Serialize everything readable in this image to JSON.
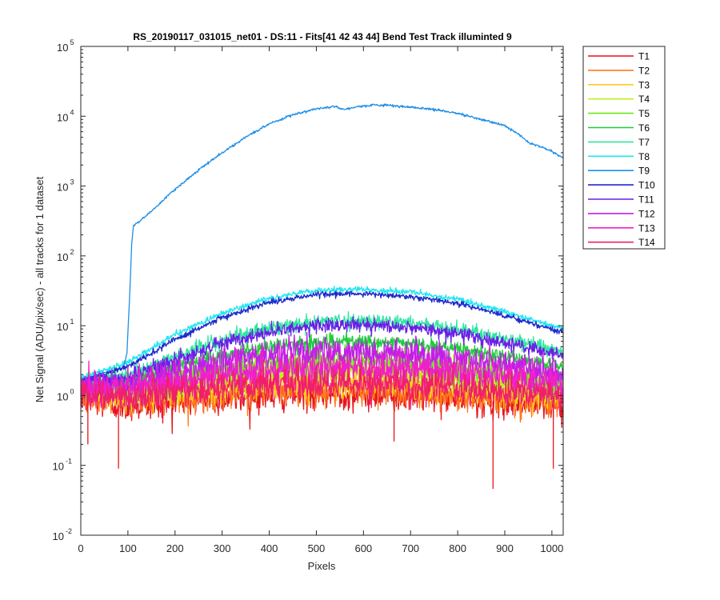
{
  "chart_data": {
    "type": "line",
    "title": "RS_20190117_031015_net01 - DS:11 - Fits[41  42  43  44]   Bend Test       Track illuminted 9",
    "xlabel": "Pixels",
    "ylabel": "Net Signal (ADU/pix/sec) - all tracks for 1 dataset",
    "xlim": [
      0,
      1024
    ],
    "ylim": [
      0.01,
      100000
    ],
    "yscale": "log",
    "grid": false,
    "legend_position": "outside-right",
    "x_ticks": [
      0,
      100,
      200,
      300,
      400,
      500,
      600,
      700,
      800,
      900,
      1000
    ],
    "y_ticks": [
      {
        "value": 0.01,
        "base": "10",
        "exp": "-2"
      },
      {
        "value": 0.1,
        "base": "10",
        "exp": "-1"
      },
      {
        "value": 1,
        "base": "10",
        "exp": "0"
      },
      {
        "value": 10,
        "base": "10",
        "exp": "1"
      },
      {
        "value": 100,
        "base": "10",
        "exp": "2"
      },
      {
        "value": 1000,
        "base": "10",
        "exp": "3"
      },
      {
        "value": 10000,
        "base": "10",
        "exp": "4"
      },
      {
        "value": 100000,
        "base": "10",
        "exp": "5"
      }
    ],
    "series": [
      {
        "name": "T1",
        "color": "#e8141c",
        "points": [
          [
            0,
            0.9
          ],
          [
            100,
            0.7
          ],
          [
            200,
            0.8
          ],
          [
            300,
            0.9
          ],
          [
            400,
            1.0
          ],
          [
            500,
            1.05
          ],
          [
            600,
            1.05
          ],
          [
            700,
            1.0
          ],
          [
            800,
            0.9
          ],
          [
            900,
            0.8
          ],
          [
            1000,
            0.7
          ],
          [
            1024,
            0.7
          ]
        ]
      },
      {
        "name": "T2",
        "color": "#ff7a1a",
        "points": [
          [
            0,
            1.0
          ],
          [
            100,
            0.85
          ],
          [
            200,
            0.95
          ],
          [
            300,
            1.05
          ],
          [
            400,
            1.15
          ],
          [
            500,
            1.2
          ],
          [
            600,
            1.2
          ],
          [
            700,
            1.15
          ],
          [
            800,
            1.05
          ],
          [
            900,
            0.95
          ],
          [
            1000,
            0.85
          ],
          [
            1024,
            0.8
          ]
        ]
      },
      {
        "name": "T3",
        "color": "#ffcc1f",
        "points": [
          [
            0,
            1.1
          ],
          [
            100,
            1.0
          ],
          [
            200,
            1.15
          ],
          [
            300,
            1.35
          ],
          [
            400,
            1.55
          ],
          [
            500,
            1.65
          ],
          [
            600,
            1.65
          ],
          [
            700,
            1.55
          ],
          [
            800,
            1.35
          ],
          [
            900,
            1.2
          ],
          [
            1000,
            1.05
          ],
          [
            1024,
            1.0
          ]
        ]
      },
      {
        "name": "T4",
        "color": "#c0f01c",
        "points": [
          [
            0,
            1.2
          ],
          [
            100,
            1.15
          ],
          [
            200,
            1.4
          ],
          [
            300,
            1.8
          ],
          [
            400,
            2.15
          ],
          [
            500,
            2.3
          ],
          [
            600,
            2.3
          ],
          [
            700,
            2.15
          ],
          [
            800,
            1.85
          ],
          [
            900,
            1.5
          ],
          [
            1000,
            1.25
          ],
          [
            1024,
            1.2
          ]
        ]
      },
      {
        "name": "T5",
        "color": "#6ee81c",
        "points": [
          [
            0,
            1.3
          ],
          [
            100,
            1.35
          ],
          [
            200,
            1.8
          ],
          [
            300,
            2.4
          ],
          [
            400,
            2.9
          ],
          [
            500,
            3.15
          ],
          [
            600,
            3.1
          ],
          [
            700,
            2.9
          ],
          [
            800,
            2.5
          ],
          [
            900,
            2.0
          ],
          [
            1000,
            1.6
          ],
          [
            1024,
            1.5
          ]
        ]
      },
      {
        "name": "T6",
        "color": "#1fcc3c",
        "points": [
          [
            0,
            1.4
          ],
          [
            100,
            1.6
          ],
          [
            200,
            2.5
          ],
          [
            300,
            3.8
          ],
          [
            400,
            5.0
          ],
          [
            500,
            5.8
          ],
          [
            600,
            5.9
          ],
          [
            700,
            5.5
          ],
          [
            800,
            4.6
          ],
          [
            900,
            3.6
          ],
          [
            1000,
            2.8
          ],
          [
            1024,
            2.6
          ]
        ]
      },
      {
        "name": "T7",
        "color": "#2ee6a0",
        "points": [
          [
            0,
            1.5
          ],
          [
            100,
            2.0
          ],
          [
            200,
            3.6
          ],
          [
            300,
            6.3
          ],
          [
            400,
            9.2
          ],
          [
            500,
            11.5
          ],
          [
            600,
            12.0
          ],
          [
            700,
            11.0
          ],
          [
            800,
            9.0
          ],
          [
            900,
            6.6
          ],
          [
            1000,
            4.6
          ],
          [
            1024,
            4.0
          ]
        ]
      },
      {
        "name": "T8",
        "color": "#22e6f0",
        "points": [
          [
            0,
            1.8
          ],
          [
            100,
            3.0
          ],
          [
            200,
            7.5
          ],
          [
            300,
            15
          ],
          [
            400,
            25
          ],
          [
            500,
            32
          ],
          [
            600,
            33
          ],
          [
            700,
            30
          ],
          [
            800,
            24
          ],
          [
            900,
            16
          ],
          [
            1000,
            10
          ],
          [
            1024,
            9
          ]
        ]
      },
      {
        "name": "T9",
        "color": "#1f8fe6",
        "points": [
          [
            0,
            1.7
          ],
          [
            90,
            2.5
          ],
          [
            98,
            4
          ],
          [
            104,
            30
          ],
          [
            108,
            150
          ],
          [
            112,
            270
          ],
          [
            140,
            380
          ],
          [
            200,
            900
          ],
          [
            250,
            1700
          ],
          [
            300,
            3000
          ],
          [
            350,
            5000
          ],
          [
            400,
            7800
          ],
          [
            450,
            10500
          ],
          [
            500,
            12800
          ],
          [
            540,
            14000
          ],
          [
            550,
            13000
          ],
          [
            560,
            12500
          ],
          [
            580,
            13500
          ],
          [
            620,
            14500
          ],
          [
            660,
            14200
          ],
          [
            700,
            13500
          ],
          [
            750,
            12500
          ],
          [
            800,
            11000
          ],
          [
            850,
            9000
          ],
          [
            900,
            7300
          ],
          [
            930,
            5500
          ],
          [
            950,
            4200
          ],
          [
            980,
            3600
          ],
          [
            1000,
            3100
          ],
          [
            1024,
            2500
          ]
        ]
      },
      {
        "name": "T10",
        "color": "#1f2acc",
        "points": [
          [
            0,
            1.6
          ],
          [
            100,
            2.6
          ],
          [
            200,
            6.3
          ],
          [
            300,
            13
          ],
          [
            400,
            22
          ],
          [
            500,
            28
          ],
          [
            600,
            29
          ],
          [
            700,
            26
          ],
          [
            800,
            21
          ],
          [
            900,
            14
          ],
          [
            1000,
            9
          ],
          [
            1024,
            8
          ]
        ]
      },
      {
        "name": "T11",
        "color": "#6a1fe6",
        "points": [
          [
            0,
            1.4
          ],
          [
            100,
            1.8
          ],
          [
            200,
            3.2
          ],
          [
            300,
            5.6
          ],
          [
            400,
            8.2
          ],
          [
            500,
            10.0
          ],
          [
            600,
            10.3
          ],
          [
            700,
            9.4
          ],
          [
            800,
            7.7
          ],
          [
            900,
            5.7
          ],
          [
            1000,
            4.1
          ],
          [
            1024,
            3.6
          ]
        ]
      },
      {
        "name": "T12",
        "color": "#c21fe6",
        "points": [
          [
            0,
            1.3
          ],
          [
            100,
            1.5
          ],
          [
            200,
            2.1
          ],
          [
            300,
            3.0
          ],
          [
            400,
            3.8
          ],
          [
            500,
            4.3
          ],
          [
            600,
            4.3
          ],
          [
            700,
            4.0
          ],
          [
            800,
            3.4
          ],
          [
            900,
            2.7
          ],
          [
            1000,
            2.1
          ],
          [
            1024,
            2.0
          ]
        ]
      },
      {
        "name": "T13",
        "color": "#f01fcc",
        "points": [
          [
            0,
            1.2
          ],
          [
            100,
            1.2
          ],
          [
            200,
            1.5
          ],
          [
            300,
            1.9
          ],
          [
            400,
            2.3
          ],
          [
            500,
            2.5
          ],
          [
            600,
            2.5
          ],
          [
            700,
            2.4
          ],
          [
            800,
            2.1
          ],
          [
            900,
            1.8
          ],
          [
            1000,
            1.5
          ],
          [
            1024,
            1.4
          ]
        ]
      },
      {
        "name": "T14",
        "color": "#f01f6a",
        "points": [
          [
            0,
            1.05
          ],
          [
            100,
            0.95
          ],
          [
            200,
            1.1
          ],
          [
            300,
            1.3
          ],
          [
            400,
            1.45
          ],
          [
            500,
            1.55
          ],
          [
            600,
            1.55
          ],
          [
            700,
            1.45
          ],
          [
            800,
            1.3
          ],
          [
            900,
            1.15
          ],
          [
            1000,
            1.0
          ],
          [
            1024,
            0.95
          ]
        ]
      }
    ],
    "annotations": [
      {
        "series": "T1",
        "x": 80,
        "y": 0.09
      },
      {
        "series": "T1",
        "x": 875,
        "y": 0.046
      },
      {
        "series": "T1",
        "x": 1003,
        "y": 0.09
      },
      {
        "series": "T1",
        "x": 665,
        "y": 0.22
      },
      {
        "series": "T1",
        "x": 15,
        "y": 0.2
      }
    ]
  }
}
